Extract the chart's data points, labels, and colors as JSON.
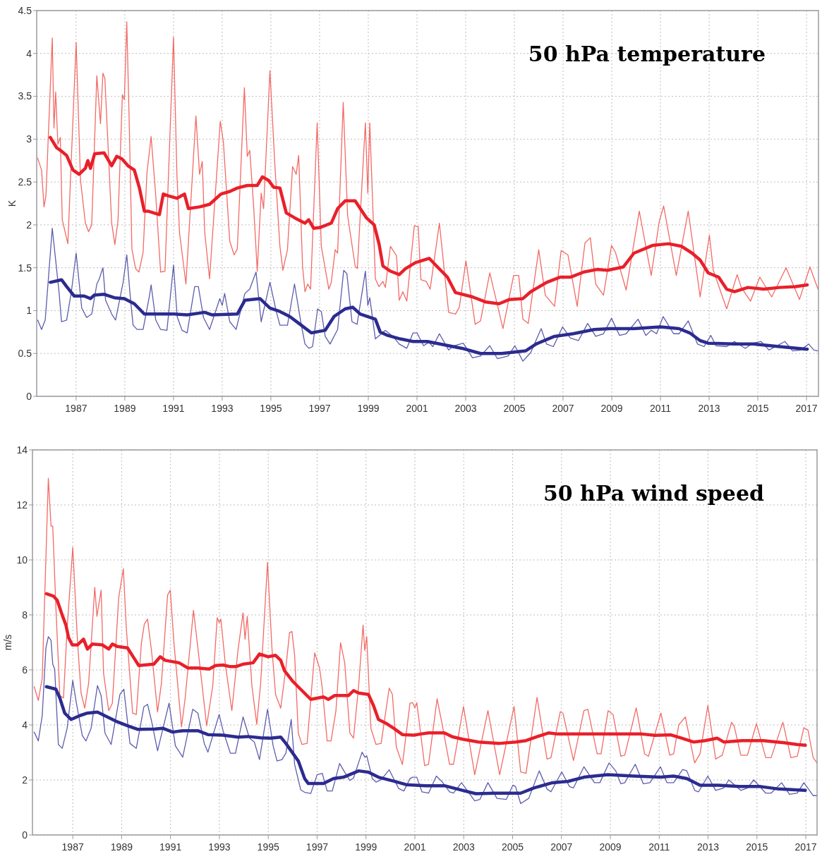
{
  "chart_data": [
    {
      "type": "line",
      "title": "50 hPa temperature",
      "ylabel": "K",
      "xlim": [
        1985.38,
        2017.49
      ],
      "xticks": [
        1987,
        1989,
        1991,
        1993,
        1995,
        1997,
        1999,
        2001,
        2003,
        2005,
        2007,
        2009,
        2011,
        2013,
        2015,
        2017
      ],
      "ylim": [
        0,
        4.5
      ],
      "yticks": [
        0,
        0.5,
        1,
        1.5,
        2,
        2.5,
        3,
        3.5,
        4,
        4.5
      ],
      "grid": true,
      "series": [
        {
          "color": "#f26a66",
          "x": [
            1985.42,
            1985.58,
            1985.68,
            1985.76,
            1986.02,
            1986.09,
            1986.16,
            1986.25,
            1986.35,
            1986.43,
            1986.66,
            1987.0,
            1987.18,
            1987.38,
            1987.51,
            1987.64,
            1987.85,
            1988.0,
            1988.1,
            1988.18,
            1988.46,
            1988.59,
            1988.72,
            1988.9,
            1988.98,
            1989.08,
            1989.19,
            1989.29,
            1989.44,
            1989.58,
            1989.75,
            1989.91,
            1990.08,
            1990.27,
            1990.47,
            1990.65,
            1991.0,
            1991.14,
            1991.25,
            1991.51,
            1991.92,
            1992.07,
            1992.18,
            1992.28,
            1992.48,
            1992.92,
            1993.05,
            1993.31,
            1993.49,
            1993.62,
            1993.91,
            1994.03,
            1994.13,
            1994.29,
            1994.44,
            1994.6,
            1994.7,
            1994.96,
            1995.16,
            1995.37,
            1995.49,
            1995.68,
            1995.89,
            1996.04,
            1996.14,
            1996.3,
            1996.4,
            1996.51,
            1996.63,
            1996.9,
            1997.07,
            1997.38,
            1997.48,
            1997.64,
            1997.74,
            1997.97,
            1998.15,
            1998.46,
            1998.55,
            1998.88,
            1998.98,
            1999.06,
            1999.21,
            1999.29,
            1999.44,
            1999.6,
            1999.7,
            1999.91,
            2000.16,
            2000.27,
            2000.42,
            2000.58,
            2000.89,
            2001.05,
            2001.16,
            2001.38,
            2001.54,
            2001.92,
            2002.3,
            2002.58,
            2002.74,
            2003.01,
            2003.39,
            2003.61,
            2003.99,
            2004.53,
            2004.97,
            2005.18,
            2005.35,
            2005.57,
            2006.0,
            2006.27,
            2006.65,
            2006.92,
            2007.2,
            2007.58,
            2007.9,
            2008.12,
            2008.34,
            2008.66,
            2008.99,
            2009.15,
            2009.59,
            2010.13,
            2010.62,
            2010.95,
            2011.13,
            2011.65,
            2012.14,
            2012.63,
            2013.01,
            2013.17,
            2013.72,
            2014.15,
            2014.32,
            2014.7,
            2015.08,
            2015.57,
            2016.16,
            2016.71,
            2017.14,
            2017.47
          ],
          "values": [
            2.78,
            2.64,
            2.21,
            2.34,
            4.18,
            3.13,
            3.55,
            2.94,
            3.02,
            2.06,
            1.78,
            4.13,
            2.52,
            2.02,
            1.92,
            2.0,
            3.74,
            3.18,
            3.77,
            3.71,
            2.02,
            1.77,
            2.05,
            3.52,
            3.46,
            4.37,
            3.08,
            1.72,
            1.49,
            1.45,
            1.68,
            2.61,
            3.03,
            2.34,
            1.45,
            1.46,
            4.19,
            2.58,
            1.9,
            1.31,
            3.27,
            2.59,
            2.74,
            1.92,
            1.37,
            3.21,
            2.96,
            1.81,
            1.65,
            1.72,
            3.6,
            2.8,
            2.87,
            2.22,
            1.46,
            2.37,
            2.19,
            3.8,
            2.71,
            1.75,
            1.47,
            1.71,
            2.68,
            2.59,
            2.81,
            1.52,
            1.22,
            1.31,
            1.25,
            3.19,
            1.75,
            1.25,
            1.33,
            1.71,
            1.67,
            3.43,
            2.11,
            1.52,
            1.49,
            3.19,
            2.37,
            3.19,
            2.02,
            1.37,
            1.28,
            1.34,
            1.27,
            1.75,
            1.64,
            1.12,
            1.22,
            1.11,
            1.99,
            1.98,
            1.36,
            1.34,
            1.25,
            2.02,
            0.98,
            0.96,
            1.04,
            1.58,
            0.84,
            0.88,
            1.44,
            0.79,
            1.41,
            1.41,
            0.9,
            0.85,
            1.71,
            1.18,
            1.05,
            1.7,
            1.65,
            1.05,
            1.79,
            1.85,
            1.31,
            1.18,
            1.76,
            1.68,
            1.24,
            2.16,
            1.41,
            2.04,
            2.22,
            1.41,
            2.16,
            1.16,
            1.88,
            1.47,
            1.02,
            1.42,
            1.27,
            1.11,
            1.39,
            1.16,
            1.5,
            1.13,
            1.51,
            1.25
          ]
        },
        {
          "color": "#e8202a",
          "x": [
            1985.94,
            1986.2,
            1986.4,
            1986.61,
            1986.87,
            1987.12,
            1987.38,
            1987.48,
            1987.59,
            1987.76,
            1988.15,
            1988.46,
            1988.67,
            1988.88,
            1989.13,
            1989.39,
            1989.6,
            1989.8,
            1989.95,
            1990.42,
            1990.58,
            1990.78,
            1991.14,
            1991.45,
            1991.61,
            1992.07,
            1992.48,
            1992.95,
            1993.31,
            1993.62,
            1994.03,
            1994.44,
            1994.65,
            1994.9,
            1995.11,
            1995.37,
            1995.63,
            1995.99,
            1996.4,
            1996.55,
            1996.76,
            1997.02,
            1997.48,
            1997.74,
            1998.05,
            1998.46,
            1998.67,
            1998.93,
            1999.24,
            1999.44,
            1999.6,
            1999.91,
            2000.27,
            2000.53,
            2000.94,
            2001.5,
            2001.77,
            2002.25,
            2002.58,
            2003.28,
            2003.83,
            2004.37,
            2004.8,
            2005.35,
            2005.67,
            2006.33,
            2006.87,
            2007.3,
            2007.85,
            2008.39,
            2008.83,
            2009.48,
            2009.91,
            2010.67,
            2011.33,
            2011.87,
            2012.3,
            2012.63,
            2012.96,
            2013.39,
            2013.72,
            2014.04,
            2014.59,
            2015.24,
            2015.89,
            2016.54,
            2017.03
          ],
          "values": [
            3.02,
            2.9,
            2.86,
            2.81,
            2.64,
            2.59,
            2.66,
            2.75,
            2.66,
            2.83,
            2.84,
            2.69,
            2.8,
            2.77,
            2.69,
            2.64,
            2.43,
            2.16,
            2.16,
            2.12,
            2.36,
            2.34,
            2.31,
            2.36,
            2.19,
            2.21,
            2.24,
            2.36,
            2.39,
            2.43,
            2.46,
            2.46,
            2.56,
            2.52,
            2.44,
            2.43,
            2.14,
            2.08,
            2.02,
            2.06,
            1.96,
            1.97,
            2.02,
            2.19,
            2.28,
            2.28,
            2.19,
            2.08,
            2.0,
            1.78,
            1.52,
            1.46,
            1.42,
            1.49,
            1.56,
            1.61,
            1.53,
            1.39,
            1.21,
            1.16,
            1.1,
            1.08,
            1.13,
            1.14,
            1.22,
            1.33,
            1.39,
            1.39,
            1.45,
            1.48,
            1.47,
            1.51,
            1.67,
            1.76,
            1.78,
            1.75,
            1.67,
            1.59,
            1.44,
            1.39,
            1.25,
            1.22,
            1.27,
            1.25,
            1.27,
            1.28,
            1.3
          ]
        },
        {
          "color": "#5c5cae",
          "x": [
            1985.42,
            1985.58,
            1985.73,
            1986.02,
            1986.14,
            1986.3,
            1986.4,
            1986.61,
            1986.81,
            1987.0,
            1987.23,
            1987.43,
            1987.64,
            1987.85,
            1987.95,
            1988.1,
            1988.21,
            1988.46,
            1988.62,
            1988.93,
            1989.08,
            1989.24,
            1989.34,
            1989.5,
            1989.75,
            1990.01,
            1990.08,
            1990.27,
            1990.47,
            1990.73,
            1991.0,
            1991.15,
            1991.35,
            1991.56,
            1991.87,
            1992.02,
            1992.23,
            1992.48,
            1992.9,
            1993.0,
            1993.1,
            1993.31,
            1993.57,
            1993.93,
            1994.13,
            1994.39,
            1994.6,
            1994.96,
            1995.22,
            1995.37,
            1995.68,
            1995.97,
            1996.25,
            1996.4,
            1996.56,
            1996.71,
            1996.92,
            1997.07,
            1997.23,
            1997.43,
            1997.74,
            1997.99,
            1998.12,
            1998.33,
            1998.54,
            1998.88,
            1998.98,
            1999.06,
            1999.29,
            1999.7,
            2000.01,
            2000.27,
            2000.58,
            2000.84,
            2001.0,
            2001.27,
            2001.49,
            2001.65,
            2001.92,
            2002.3,
            2002.52,
            2002.9,
            2003.28,
            2003.61,
            2003.99,
            2004.3,
            2004.74,
            2005.02,
            2005.35,
            2005.67,
            2006.1,
            2006.32,
            2006.6,
            2006.98,
            2007.3,
            2007.63,
            2008.01,
            2008.34,
            2008.66,
            2008.99,
            2009.32,
            2009.59,
            2010.08,
            2010.4,
            2010.62,
            2010.84,
            2011.11,
            2011.54,
            2011.76,
            2012.14,
            2012.52,
            2012.79,
            2013.07,
            2013.28,
            2013.72,
            2014.04,
            2014.48,
            2014.8,
            2015.13,
            2015.46,
            2016.11,
            2016.43,
            2016.76,
            2017.09,
            2017.3,
            2017.47
          ],
          "values": [
            0.89,
            0.78,
            0.89,
            1.96,
            1.64,
            1.21,
            0.87,
            0.89,
            1.23,
            1.67,
            1.03,
            0.92,
            0.96,
            1.31,
            1.37,
            1.5,
            1.12,
            0.96,
            0.89,
            1.33,
            1.65,
            1.11,
            0.83,
            0.78,
            0.78,
            1.17,
            1.3,
            0.89,
            0.78,
            0.77,
            1.53,
            0.93,
            0.77,
            0.74,
            1.28,
            1.28,
            0.92,
            0.78,
            1.14,
            1.06,
            1.2,
            0.87,
            0.78,
            1.2,
            1.25,
            1.45,
            0.87,
            1.33,
            0.99,
            0.83,
            0.83,
            1.31,
            0.83,
            0.61,
            0.56,
            0.58,
            1.02,
            0.99,
            0.7,
            0.61,
            0.78,
            1.47,
            1.43,
            0.87,
            0.84,
            1.46,
            1.06,
            1.15,
            0.67,
            0.77,
            0.7,
            0.61,
            0.56,
            0.74,
            0.74,
            0.59,
            0.63,
            0.58,
            0.73,
            0.54,
            0.59,
            0.62,
            0.45,
            0.47,
            0.59,
            0.44,
            0.47,
            0.59,
            0.41,
            0.51,
            0.79,
            0.61,
            0.58,
            0.81,
            0.68,
            0.65,
            0.85,
            0.7,
            0.73,
            0.91,
            0.71,
            0.73,
            0.9,
            0.71,
            0.77,
            0.73,
            0.93,
            0.73,
            0.73,
            0.88,
            0.61,
            0.58,
            0.71,
            0.59,
            0.58,
            0.64,
            0.56,
            0.62,
            0.64,
            0.54,
            0.64,
            0.53,
            0.54,
            0.61,
            0.54,
            0.53
          ]
        },
        {
          "color": "#2b2b8f",
          "x": [
            1985.94,
            1986.4,
            1986.61,
            1986.92,
            1987.33,
            1987.59,
            1987.74,
            1988.15,
            1988.57,
            1988.98,
            1989.39,
            1989.8,
            1990.42,
            1991.04,
            1991.56,
            1992.28,
            1992.59,
            1993.62,
            1993.93,
            1994.55,
            1994.96,
            1995.37,
            1995.78,
            1996.2,
            1996.66,
            1997.23,
            1997.59,
            1998.05,
            1998.36,
            1998.67,
            1999.29,
            1999.49,
            1999.8,
            2000.31,
            2000.84,
            2001.43,
            2002.3,
            2002.85,
            2003.61,
            2004.48,
            2005.46,
            2005.89,
            2006.65,
            2007.41,
            2008.28,
            2008.93,
            2009.91,
            2011.0,
            2011.76,
            2012.2,
            2012.63,
            2012.96,
            2014.04,
            2014.8,
            2015.89,
            2017.03
          ],
          "values": [
            1.33,
            1.36,
            1.28,
            1.17,
            1.17,
            1.14,
            1.18,
            1.19,
            1.15,
            1.14,
            1.08,
            0.96,
            0.96,
            0.96,
            0.95,
            0.98,
            0.95,
            0.96,
            1.12,
            1.14,
            1.03,
            0.99,
            0.93,
            0.84,
            0.74,
            0.77,
            0.93,
            1.02,
            1.04,
            0.96,
            0.9,
            0.75,
            0.71,
            0.67,
            0.64,
            0.64,
            0.59,
            0.56,
            0.5,
            0.5,
            0.53,
            0.61,
            0.7,
            0.73,
            0.78,
            0.79,
            0.79,
            0.81,
            0.79,
            0.74,
            0.65,
            0.62,
            0.61,
            0.61,
            0.58,
            0.55
          ]
        }
      ]
    },
    {
      "type": "line",
      "title": "50 hPa wind speed",
      "ylabel": "m/s",
      "xlim": [
        1985.35,
        2017.46
      ],
      "xticks": [
        1987,
        1989,
        1991,
        1993,
        1995,
        1997,
        1999,
        2001,
        2003,
        2005,
        2007,
        2009,
        2011,
        2013,
        2015,
        2017
      ],
      "ylim": [
        0,
        14
      ],
      "yticks": [
        0,
        2,
        4,
        6,
        8,
        10,
        12,
        14
      ],
      "grid": true,
      "series": [
        {
          "color": "#f26a66",
          "x": [
            1985.42,
            1985.59,
            1985.75,
            1986.0,
            1986.11,
            1986.18,
            1986.31,
            1986.47,
            1986.62,
            1986.77,
            1987.0,
            1987.19,
            1987.34,
            1987.49,
            1987.65,
            1987.9,
            1987.99,
            1988.16,
            1988.26,
            1988.47,
            1988.62,
            1988.88,
            1989.07,
            1989.19,
            1989.45,
            1989.6,
            1989.81,
            1989.93,
            1990.06,
            1990.22,
            1990.47,
            1990.63,
            1990.88,
            1990.99,
            1991.14,
            1991.45,
            1991.6,
            1991.94,
            1992.12,
            1992.48,
            1992.73,
            1992.91,
            1992.99,
            1993.06,
            1993.25,
            1993.51,
            1993.76,
            1993.97,
            1994.05,
            1994.14,
            1994.33,
            1994.53,
            1994.69,
            1994.97,
            1995.15,
            1995.3,
            1995.51,
            1995.72,
            1995.87,
            1995.97,
            1996.08,
            1996.23,
            1996.38,
            1996.59,
            1996.9,
            1997.1,
            1997.21,
            1997.41,
            1997.57,
            1997.77,
            1997.96,
            1998.13,
            1998.34,
            1998.49,
            1998.7,
            1998.88,
            1998.95,
            1999.03,
            1999.2,
            1999.41,
            1999.62,
            1999.95,
            2000.08,
            2000.24,
            2000.49,
            2000.8,
            2000.91,
            2001.0,
            2001.08,
            2001.4,
            2001.56,
            2001.91,
            2002.1,
            2002.42,
            2002.58,
            2002.99,
            2003.45,
            2003.99,
            2004.47,
            2005.06,
            2005.33,
            2005.55,
            2006.0,
            2006.41,
            2006.57,
            2006.95,
            2007.06,
            2007.49,
            2007.92,
            2008.08,
            2008.46,
            2008.62,
            2008.91,
            2009.11,
            2009.43,
            2009.59,
            2010.06,
            2010.4,
            2010.56,
            2011.07,
            2011.43,
            2011.59,
            2011.8,
            2012.07,
            2012.45,
            2012.67,
            2012.99,
            2013.31,
            2013.58,
            2013.85,
            2013.96,
            2014.07,
            2014.34,
            2014.61,
            2014.98,
            2015.36,
            2015.58,
            2016.06,
            2016.39,
            2016.65,
            2016.92,
            2017.09,
            2017.3,
            2017.46
          ],
          "values": [
            5.39,
            4.89,
            5.71,
            12.97,
            11.23,
            11.23,
            8.26,
            5.07,
            4.98,
            7.53,
            10.46,
            7.08,
            5.16,
            4.61,
            5.53,
            9.0,
            7.95,
            8.9,
            5.89,
            4.52,
            4.79,
            8.63,
            9.68,
            7.53,
            4.43,
            4.38,
            6.99,
            7.67,
            7.85,
            6.71,
            4.47,
            5.53,
            8.72,
            8.9,
            6.99,
            3.93,
            4.98,
            8.17,
            6.8,
            3.97,
            5.43,
            7.9,
            7.72,
            7.85,
            6.16,
            4.52,
            6.71,
            8.08,
            7.12,
            7.95,
            5.43,
            4.02,
            5.53,
            9.91,
            6.8,
            5.11,
            4.61,
            6.07,
            7.35,
            7.4,
            6.53,
            3.7,
            3.29,
            3.33,
            6.62,
            6.07,
            5.34,
            3.42,
            3.42,
            4.52,
            6.99,
            6.26,
            3.7,
            3.52,
            5.43,
            7.63,
            6.71,
            7.21,
            3.88,
            3.29,
            3.33,
            5.34,
            5.11,
            3.2,
            2.56,
            4.79,
            4.81,
            4.62,
            4.81,
            2.52,
            2.57,
            4.95,
            4.1,
            2.57,
            2.57,
            4.67,
            2.19,
            4.52,
            2.19,
            4.67,
            2.29,
            2.24,
            5.0,
            2.76,
            2.81,
            4.48,
            4.43,
            2.71,
            4.52,
            4.57,
            2.95,
            2.95,
            4.52,
            4.38,
            2.86,
            2.9,
            4.62,
            2.95,
            2.86,
            4.43,
            2.9,
            2.95,
            4.0,
            4.29,
            2.62,
            2.95,
            4.71,
            2.76,
            2.9,
            3.76,
            4.1,
            3.95,
            2.9,
            2.9,
            4.05,
            2.81,
            2.81,
            4.1,
            2.81,
            2.86,
            3.9,
            3.81,
            2.81,
            2.62
          ]
        },
        {
          "color": "#e8202a",
          "x": [
            1985.92,
            1986.21,
            1986.36,
            1986.57,
            1986.72,
            1986.83,
            1986.98,
            1987.19,
            1987.44,
            1987.6,
            1987.8,
            1988.21,
            1988.47,
            1988.62,
            1988.83,
            1989.24,
            1989.5,
            1989.7,
            1990.32,
            1990.58,
            1990.78,
            1991.35,
            1991.71,
            1992.12,
            1992.58,
            1992.84,
            1993.15,
            1993.45,
            1993.66,
            1993.97,
            1994.38,
            1994.64,
            1995.0,
            1995.3,
            1995.51,
            1995.66,
            1996.02,
            1996.38,
            1996.74,
            1997.26,
            1997.46,
            1997.72,
            1998.28,
            1998.49,
            1998.7,
            1999.1,
            1999.31,
            1999.51,
            1999.82,
            2000.13,
            2000.49,
            2000.96,
            2001.24,
            2001.56,
            2002.21,
            2002.53,
            2002.96,
            2003.61,
            2004.47,
            2005.12,
            2005.55,
            2005.98,
            2006.47,
            2006.84,
            2007.71,
            2008.57,
            2009.43,
            2010.29,
            2010.83,
            2011.48,
            2011.91,
            2012.4,
            2012.88,
            2013.37,
            2013.64,
            2014.39,
            2015.25,
            2016.12,
            2016.65,
            2016.98
          ],
          "values": [
            8.77,
            8.68,
            8.54,
            7.99,
            7.63,
            7.17,
            6.91,
            6.91,
            7.12,
            6.76,
            6.94,
            6.91,
            6.76,
            6.94,
            6.85,
            6.8,
            6.44,
            6.16,
            6.21,
            6.48,
            6.35,
            6.26,
            6.07,
            6.07,
            6.03,
            6.16,
            6.18,
            6.12,
            6.12,
            6.21,
            6.26,
            6.58,
            6.48,
            6.53,
            6.35,
            5.98,
            5.57,
            5.25,
            4.93,
            5.02,
            4.93,
            5.07,
            5.07,
            5.25,
            5.16,
            5.11,
            4.7,
            4.2,
            4.06,
            3.88,
            3.65,
            3.63,
            3.67,
            3.71,
            3.71,
            3.57,
            3.48,
            3.38,
            3.33,
            3.38,
            3.43,
            3.57,
            3.71,
            3.67,
            3.67,
            3.67,
            3.67,
            3.67,
            3.62,
            3.64,
            3.52,
            3.38,
            3.43,
            3.52,
            3.38,
            3.43,
            3.43,
            3.35,
            3.29,
            3.26
          ]
        },
        {
          "color": "#5c5cae",
          "x": [
            1985.42,
            1985.59,
            1985.75,
            1985.9,
            1986.0,
            1986.11,
            1986.18,
            1986.26,
            1986.41,
            1986.57,
            1986.77,
            1987.0,
            1987.13,
            1987.39,
            1987.54,
            1987.75,
            1988.01,
            1988.16,
            1988.32,
            1988.57,
            1988.93,
            1989.09,
            1989.34,
            1989.6,
            1989.91,
            1990.06,
            1990.22,
            1990.47,
            1990.94,
            1991.2,
            1991.5,
            1991.91,
            1992.12,
            1992.38,
            1992.53,
            1992.99,
            1993.15,
            1993.45,
            1993.66,
            1993.97,
            1994.23,
            1994.43,
            1994.64,
            1994.97,
            1995.2,
            1995.36,
            1995.56,
            1995.72,
            1995.94,
            1996.08,
            1996.33,
            1996.49,
            1996.74,
            1997.0,
            1997.21,
            1997.41,
            1997.62,
            1997.92,
            1998.13,
            1998.34,
            1998.49,
            1998.84,
            1998.95,
            1999.03,
            1999.26,
            1999.41,
            1999.62,
            1999.95,
            2000.13,
            2000.34,
            2000.55,
            2000.8,
            2000.91,
            2001.08,
            2001.29,
            2001.56,
            2001.88,
            2002.1,
            2002.42,
            2002.58,
            2002.91,
            2003.45,
            2003.66,
            2003.99,
            2004.36,
            2004.74,
            2005.01,
            2005.12,
            2005.33,
            2005.66,
            2006.09,
            2006.41,
            2006.57,
            2007.01,
            2007.33,
            2007.49,
            2007.92,
            2008.35,
            2008.57,
            2008.95,
            2009.22,
            2009.43,
            2009.59,
            2010.02,
            2010.35,
            2010.62,
            2011.05,
            2011.32,
            2011.59,
            2011.96,
            2012.13,
            2012.45,
            2012.61,
            2012.99,
            2013.31,
            2013.64,
            2013.85,
            2014.34,
            2014.61,
            2014.87,
            2015.36,
            2015.58,
            2016.01,
            2016.33,
            2016.65,
            2016.92,
            2017.3,
            2017.46
          ],
          "values": [
            3.74,
            3.42,
            4.34,
            6.8,
            7.21,
            7.08,
            6.21,
            6.03,
            3.29,
            3.15,
            3.88,
            5.62,
            4.89,
            3.61,
            3.42,
            3.88,
            5.43,
            5.07,
            3.7,
            3.29,
            5.11,
            5.3,
            3.33,
            3.15,
            4.66,
            4.75,
            4.16,
            3.06,
            4.79,
            3.24,
            2.83,
            4.57,
            4.43,
            3.33,
            3.01,
            4.38,
            3.79,
            2.97,
            2.97,
            4.29,
            3.52,
            3.38,
            2.74,
            4.57,
            3.24,
            2.69,
            2.74,
            2.97,
            4.2,
            2.56,
            1.64,
            1.55,
            1.51,
            2.19,
            2.24,
            1.6,
            1.6,
            2.6,
            2.28,
            1.98,
            2.07,
            3.01,
            2.83,
            2.88,
            2.05,
            1.92,
            2.01,
            2.37,
            2.05,
            1.69,
            1.6,
            2.05,
            2.1,
            2.1,
            1.57,
            1.52,
            2.14,
            1.95,
            1.57,
            1.52,
            1.9,
            1.24,
            1.29,
            1.9,
            1.33,
            1.29,
            1.81,
            1.76,
            1.14,
            1.33,
            2.33,
            1.67,
            1.57,
            2.29,
            1.76,
            1.71,
            2.48,
            1.9,
            1.9,
            2.62,
            2.33,
            1.86,
            1.9,
            2.57,
            1.86,
            1.9,
            2.48,
            1.9,
            1.9,
            2.38,
            2.33,
            1.62,
            1.57,
            2.14,
            1.62,
            1.71,
            2.0,
            1.62,
            1.71,
            2.0,
            1.52,
            1.52,
            1.9,
            1.48,
            1.52,
            1.9,
            1.43,
            1.43
          ]
        },
        {
          "color": "#2b2b8f",
          "x": [
            1985.92,
            1986.31,
            1986.47,
            1986.67,
            1986.93,
            1987.29,
            1987.6,
            1988.01,
            1988.42,
            1988.83,
            1989.24,
            1989.65,
            1990.37,
            1990.68,
            1991.09,
            1991.5,
            1992.12,
            1992.53,
            1993.15,
            1993.76,
            1994.17,
            1994.69,
            1995.1,
            1995.51,
            1995.72,
            1996.23,
            1996.49,
            1996.64,
            1997.26,
            1997.67,
            1998.08,
            1998.7,
            1999.1,
            1999.51,
            2000.13,
            2000.65,
            2001.45,
            2002.21,
            2002.96,
            2003.5,
            2004.26,
            2005.33,
            2005.87,
            2006.63,
            2007.27,
            2007.92,
            2008.89,
            2009.97,
            2011.05,
            2011.59,
            2012.13,
            2012.67,
            2013.42,
            2014.28,
            2015.15,
            2015.9,
            2016.98
          ],
          "values": [
            5.39,
            5.3,
            4.98,
            4.43,
            4.2,
            4.34,
            4.43,
            4.47,
            4.29,
            4.11,
            3.97,
            3.84,
            3.85,
            3.88,
            3.74,
            3.79,
            3.79,
            3.65,
            3.63,
            3.56,
            3.58,
            3.53,
            3.52,
            3.56,
            3.33,
            2.69,
            2.05,
            1.87,
            1.87,
            2.05,
            2.1,
            2.33,
            2.28,
            2.1,
            1.96,
            1.83,
            1.79,
            1.79,
            1.62,
            1.5,
            1.52,
            1.52,
            1.71,
            1.9,
            1.95,
            2.1,
            2.19,
            2.14,
            2.1,
            2.14,
            2.05,
            1.81,
            1.81,
            1.76,
            1.76,
            1.67,
            1.62
          ]
        }
      ]
    }
  ]
}
